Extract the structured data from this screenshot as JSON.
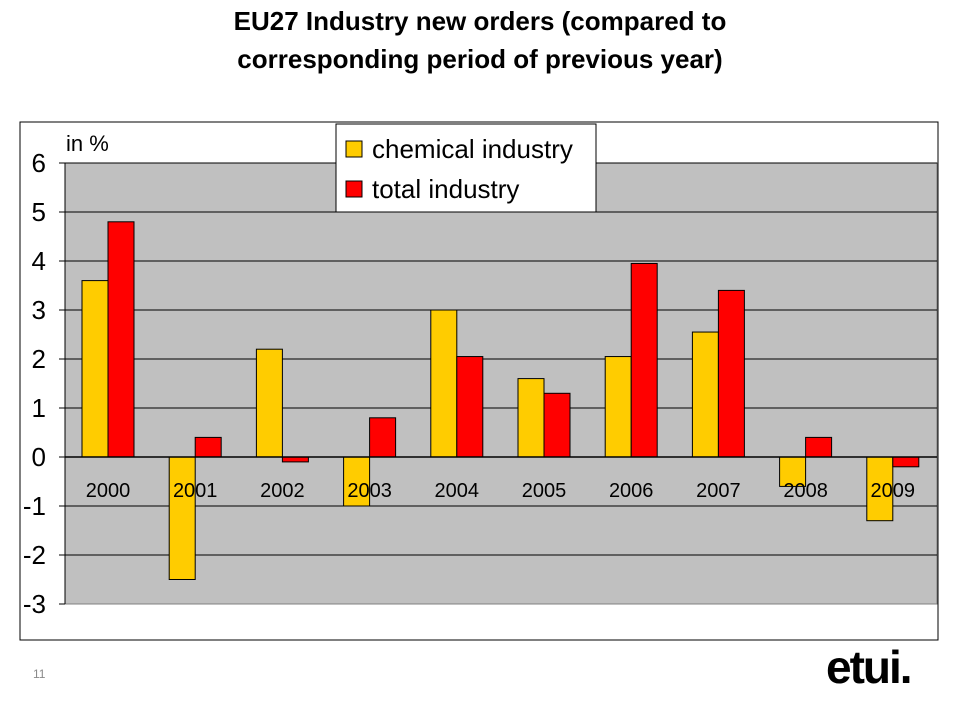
{
  "slide": {
    "title_line1": "EU27 Industry new orders (compared to",
    "title_line2": "corresponding period of previous year)",
    "page_number": "11",
    "logo_text": "etui."
  },
  "chart_data": {
    "type": "bar",
    "title": "EU27 Industry new orders (compared to corresponding period of previous year)",
    "ylabel": "in %",
    "xlabel": "",
    "categories": [
      "2000",
      "2001",
      "2002",
      "2003",
      "2004",
      "2005",
      "2006",
      "2007",
      "2008",
      "2009"
    ],
    "series": [
      {
        "name": "chemical industry",
        "color": "#FFCC00",
        "values": [
          3.6,
          -2.5,
          2.2,
          -1.0,
          3.0,
          1.6,
          2.05,
          2.55,
          -0.6,
          -1.3
        ]
      },
      {
        "name": "total industry",
        "color": "#FF0000",
        "values": [
          4.8,
          0.4,
          -0.1,
          0.8,
          2.05,
          1.3,
          3.95,
          3.4,
          0.4,
          -0.2
        ]
      }
    ],
    "ylim": [
      -3,
      6
    ],
    "yticks": [
      "6",
      "5",
      "4",
      "3",
      "2",
      "1",
      "0",
      "-1",
      "-2",
      "-3"
    ],
    "grid": true,
    "legend": "top",
    "plot_background": "#C0C0C0"
  }
}
